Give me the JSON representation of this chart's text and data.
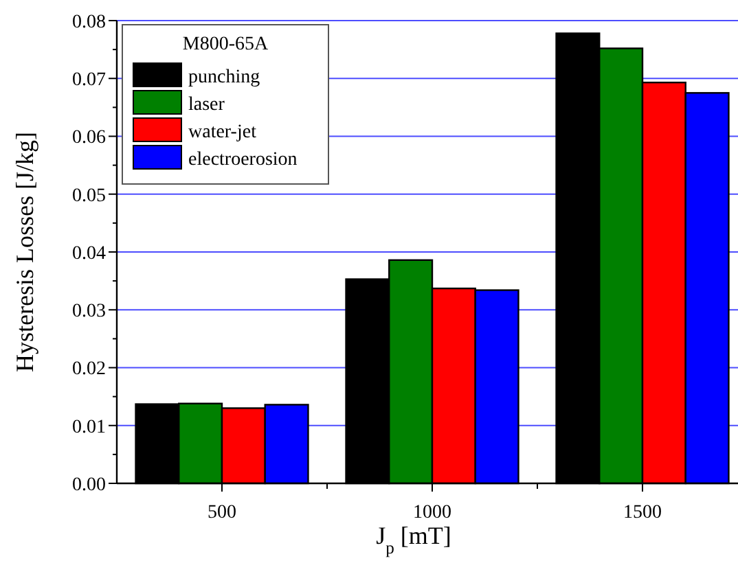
{
  "chart_data": {
    "type": "bar",
    "xlabel": "J$_{p}$ [mT]",
    "ylabel": "Hysteresis Losses [J/kg]",
    "legend_title": "M800-65A",
    "categories": [
      "500",
      "1000",
      "1500"
    ],
    "series": [
      {
        "name": "punching",
        "color": "#000000",
        "values": [
          0.0137,
          0.0353,
          0.0778
        ]
      },
      {
        "name": "laser",
        "color": "#008000",
        "values": [
          0.0138,
          0.0386,
          0.0752
        ]
      },
      {
        "name": "water-jet",
        "color": "#ff0000",
        "values": [
          0.013,
          0.0337,
          0.0693
        ]
      },
      {
        "name": "electroerosion",
        "color": "#0000ff",
        "values": [
          0.0136,
          0.0334,
          0.0675
        ]
      }
    ],
    "ylim": [
      0,
      0.08
    ],
    "yticks": [
      {
        "value": 0,
        "label": "0.00"
      },
      {
        "value": 0.005,
        "label": null
      },
      {
        "value": 0.01,
        "label": "0.01"
      },
      {
        "value": 0.015,
        "label": null
      },
      {
        "value": 0.02,
        "label": "0.02"
      },
      {
        "value": 0.025,
        "label": null
      },
      {
        "value": 0.03,
        "label": "0.03"
      },
      {
        "value": 0.035,
        "label": null
      },
      {
        "value": 0.04,
        "label": "0.04"
      },
      {
        "value": 0.045,
        "label": null
      },
      {
        "value": 0.05,
        "label": "0.05"
      },
      {
        "value": 0.055,
        "label": null
      },
      {
        "value": 0.06,
        "label": "0.06"
      },
      {
        "value": 0.065,
        "label": null
      },
      {
        "value": 0.07,
        "label": "0.07"
      },
      {
        "value": 0.075,
        "label": null
      },
      {
        "value": 0.08,
        "label": "0.08"
      }
    ],
    "grid": "y",
    "legend": "top left"
  }
}
